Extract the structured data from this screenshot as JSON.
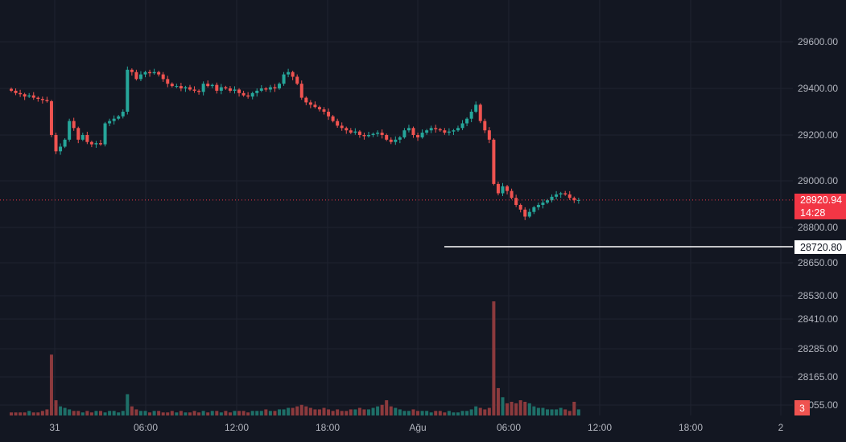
{
  "colors": {
    "background": "#131722",
    "grid": "#1f2330",
    "up": "#26a69a",
    "down": "#ef5350",
    "up_volume": "#1e6f68",
    "down_volume": "#8c3a3d",
    "axis_text": "#b2b5be",
    "last_price_bg": "#f23645",
    "label_light_bg": "#ffffff",
    "horizontal_line": "#ffffff"
  },
  "chart_data": {
    "type": "candlestick",
    "x_tick_labels": [
      "31",
      "06:00",
      "12:00",
      "18:00",
      "Ağu",
      "06:00",
      "12:00",
      "18:00",
      "2"
    ],
    "y_tick_labels": [
      "29600.00",
      "29400.00",
      "29200.00",
      "29000.00",
      "28800.00",
      "28650.00",
      "28530.00",
      "28410.00",
      "28285.00",
      "28165.00",
      "28055.00"
    ],
    "price_range": [
      28650,
      29600
    ],
    "last_price": {
      "value": 28920.94,
      "label": "28920.94",
      "countdown": "14:28"
    },
    "horizontal_line": {
      "value": 28720.8,
      "label": "28720.80"
    },
    "volume_badge": "3",
    "price_series": [
      29390,
      29380,
      29375,
      29365,
      29370,
      29360,
      29355,
      29350,
      29345,
      29200,
      29130,
      29150,
      29180,
      29260,
      29230,
      29180,
      29200,
      29170,
      29160,
      29165,
      29160,
      29250,
      29260,
      29270,
      29280,
      29300,
      29480,
      29470,
      29440,
      29460,
      29470,
      29465,
      29470,
      29460,
      29440,
      29420,
      29410,
      29410,
      29400,
      29405,
      29395,
      29390,
      29385,
      29420,
      29410,
      29415,
      29390,
      29405,
      29400,
      29390,
      29395,
      29380,
      29370,
      29365,
      29380,
      29390,
      29400,
      29395,
      29405,
      29400,
      29420,
      29460,
      29470,
      29450,
      29420,
      29360,
      29340,
      29330,
      29320,
      29310,
      29300,
      29280,
      29260,
      29240,
      29230,
      29220,
      29210,
      29215,
      29200,
      29195,
      29200,
      29205,
      29210,
      29200,
      29180,
      29170,
      29180,
      29190,
      29220,
      29230,
      29200,
      29190,
      29210,
      29220,
      29230,
      29225,
      29220,
      29210,
      29215,
      29220,
      29230,
      29250,
      29270,
      29300,
      29330,
      29260,
      29220,
      29180,
      28990,
      28950,
      28980,
      28960,
      28930,
      28900,
      28880,
      28850,
      28870,
      28890,
      28900,
      28910,
      28920,
      28935,
      28945,
      28950,
      28945,
      28930,
      28920,
      28920.94
    ],
    "volume_series": [
      2,
      2,
      2,
      2,
      3,
      2,
      2,
      3,
      4,
      40,
      10,
      6,
      5,
      4,
      3,
      3,
      2,
      3,
      2,
      3,
      3,
      2,
      3,
      3,
      2,
      3,
      14,
      6,
      4,
      3,
      3,
      2,
      3,
      3,
      2,
      2,
      3,
      2,
      3,
      2,
      2,
      3,
      2,
      3,
      2,
      3,
      3,
      2,
      3,
      2,
      3,
      3,
      3,
      2,
      3,
      3,
      3,
      4,
      3,
      3,
      4,
      4,
      5,
      5,
      6,
      7,
      6,
      5,
      4,
      4,
      5,
      4,
      3,
      4,
      3,
      3,
      4,
      4,
      5,
      4,
      4,
      5,
      6,
      7,
      10,
      6,
      5,
      4,
      3,
      3,
      4,
      3,
      3,
      3,
      2,
      3,
      3,
      2,
      3,
      2,
      2,
      3,
      3,
      4,
      6,
      5,
      4,
      5,
      75,
      18,
      12,
      8,
      9,
      8,
      10,
      9,
      8,
      6,
      5,
      5,
      4,
      4,
      4,
      5,
      4,
      3,
      9,
      4
    ]
  }
}
